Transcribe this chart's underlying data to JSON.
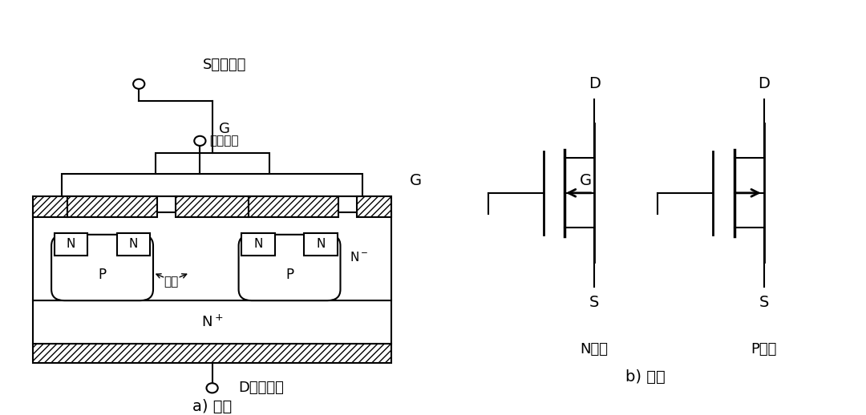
{
  "bg": "#ffffff",
  "lc": "#000000",
  "title_a": "a) 结构",
  "title_b": "b) 符号",
  "label_S": "S（源极）",
  "label_G1": "G",
  "label_G2": "（栅极）",
  "label_D": "D（漏极）",
  "label_channel": "沟道",
  "label_N_ch": "N沟道",
  "label_P_ch": "P沟道",
  "cell_centers": [
    2.3,
    6.9
  ],
  "lw": 1.5
}
